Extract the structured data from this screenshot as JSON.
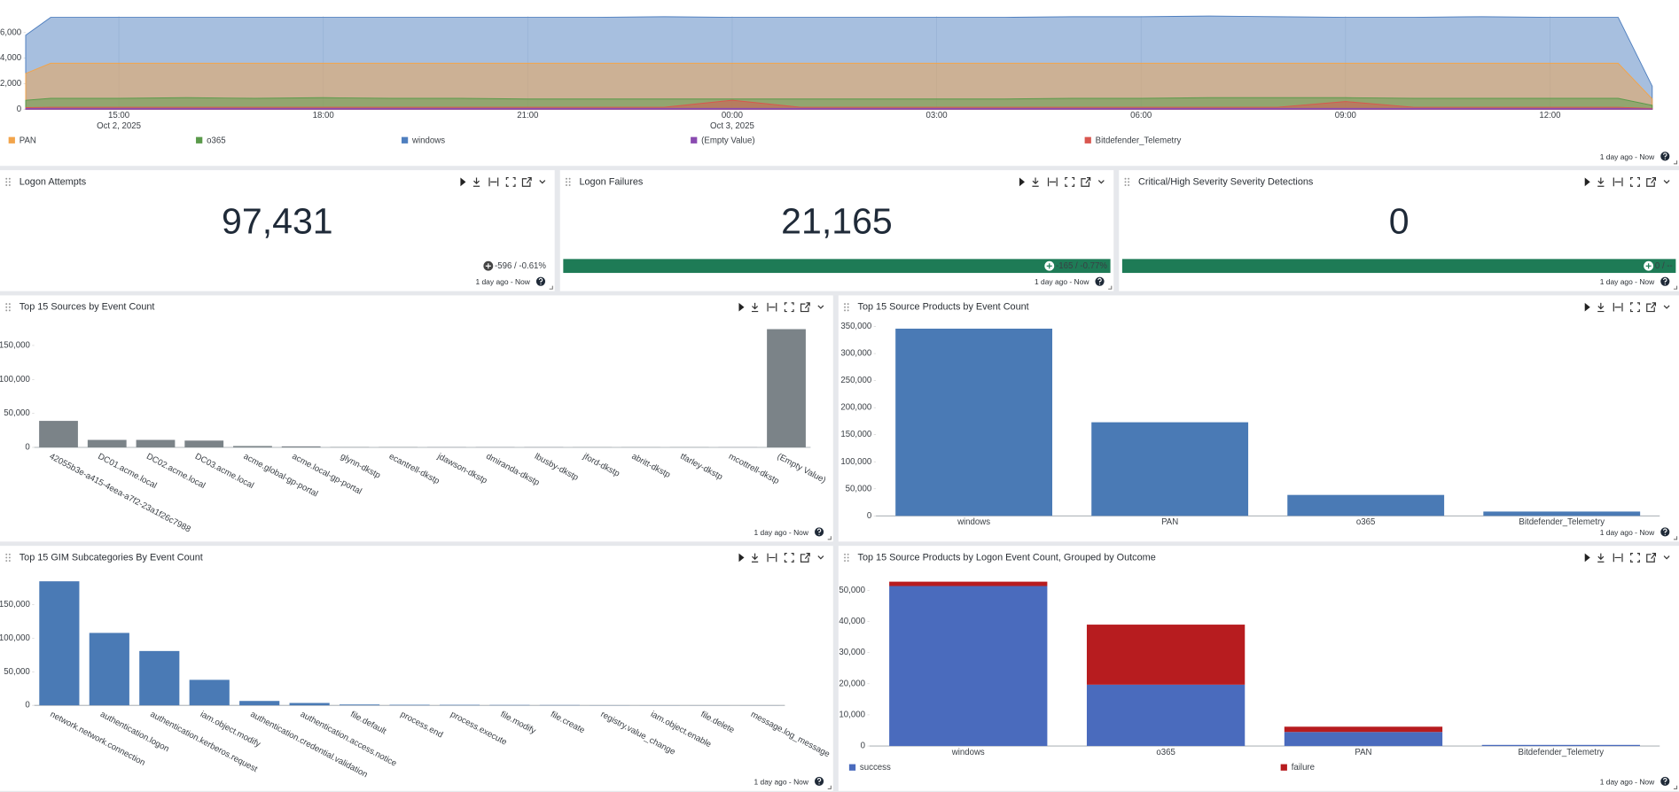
{
  "chart_data": [
    {
      "type": "area",
      "x": [
        "2025-10-02 13:38",
        "2025-10-02 14:00",
        "2025-10-02 15:00",
        "2025-10-02 16:00",
        "2025-10-02 17:00",
        "2025-10-02 18:00",
        "2025-10-02 19:00",
        "2025-10-02 20:00",
        "2025-10-02 21:00",
        "2025-10-02 22:00",
        "2025-10-02 23:00",
        "2025-10-03 00:00",
        "2025-10-03 01:00",
        "2025-10-03 02:00",
        "2025-10-03 03:00",
        "2025-10-03 04:00",
        "2025-10-03 05:00",
        "2025-10-03 06:00",
        "2025-10-03 07:00",
        "2025-10-03 08:00",
        "2025-10-03 09:00",
        "2025-10-03 10:00",
        "2025-10-03 11:00",
        "2025-10-03 12:00",
        "2025-10-03 13:00",
        "2025-10-03 13:30"
      ],
      "series": [
        {
          "name": "PAN",
          "color": "#f2a44b",
          "values": [
            2800,
            3600,
            3600,
            3600,
            3600,
            3600,
            3600,
            3600,
            3600,
            3600,
            3600,
            3600,
            3600,
            3600,
            3600,
            3600,
            3600,
            3600,
            3600,
            3600,
            3600,
            3600,
            3600,
            3600,
            3600,
            800
          ]
        },
        {
          "name": "o365",
          "color": "#5a9a4a",
          "values": [
            700,
            850,
            850,
            900,
            850,
            900,
            850,
            850,
            800,
            800,
            800,
            800,
            800,
            800,
            800,
            800,
            850,
            850,
            900,
            900,
            900,
            850,
            850,
            850,
            850,
            300
          ]
        },
        {
          "name": "windows",
          "color": "#4f7fbf",
          "values": [
            5800,
            7200,
            7200,
            7200,
            7200,
            7200,
            7200,
            7200,
            7200,
            7200,
            7250,
            7200,
            7200,
            7200,
            7200,
            7200,
            7250,
            7250,
            7300,
            7250,
            7200,
            7200,
            7250,
            7200,
            7200,
            1800
          ]
        },
        {
          "name": "(Empty Value)",
          "color": "#8a4bb0",
          "values": [
            50,
            60,
            60,
            60,
            60,
            60,
            60,
            60,
            60,
            60,
            60,
            60,
            60,
            60,
            60,
            60,
            60,
            60,
            60,
            60,
            60,
            60,
            60,
            60,
            60,
            20
          ]
        },
        {
          "name": "Bitdefender_Telemetry",
          "color": "#d9564f",
          "values": [
            120,
            150,
            150,
            150,
            150,
            150,
            150,
            150,
            150,
            150,
            150,
            700,
            150,
            150,
            150,
            150,
            150,
            150,
            150,
            150,
            600,
            150,
            150,
            150,
            150,
            50
          ]
        }
      ],
      "xlim": [
        "2025-10-02 13:38",
        "2025-10-03 13:30"
      ],
      "xticks": [
        {
          "value": "2025-10-02 15:00",
          "label": "15:00",
          "date": "Oct 2, 2025"
        },
        {
          "value": "2025-10-02 18:00",
          "label": "18:00"
        },
        {
          "value": "2025-10-02 21:00",
          "label": "21:00"
        },
        {
          "value": "2025-10-03 00:00",
          "label": "00:00",
          "date": "Oct 3, 2025"
        },
        {
          "value": "2025-10-03 03:00",
          "label": "03:00"
        },
        {
          "value": "2025-10-03 06:00",
          "label": "06:00"
        },
        {
          "value": "2025-10-03 09:00",
          "label": "09:00"
        },
        {
          "value": "2025-10-03 12:00",
          "label": "12:00"
        }
      ],
      "ylim": [
        0,
        7300
      ],
      "yticks": [
        0,
        {
          "value": 2000,
          "label": "2,000"
        },
        {
          "value": 4000,
          "label": "4,000"
        },
        {
          "value": 6000,
          "label": "6,000"
        }
      ],
      "grid": true
    },
    {
      "type": "bar",
      "title": "Top 15 Sources by Event Count",
      "color": "#7b8388",
      "categories": [
        "42055b3e-a415-4eea-a7f2-23a1f26c7988",
        "DC01.acme.local",
        "DC02.acme.local",
        "DC03.acme.local",
        "acme.global-gp-portal",
        "acme.local-gp-portal",
        "glynn-dkstp",
        "ecantrell-dkstp",
        "jdawson-dkstp",
        "dmiranda-dkstp",
        "lbusby-dkstp",
        "jford-dkstp",
        "abritt-dkstp",
        "tfarley-dkstp",
        "mcottrell-dkstp",
        "(Empty Value)"
      ],
      "values": [
        39000,
        11000,
        11000,
        10000,
        2000,
        1500,
        400,
        350,
        300,
        300,
        300,
        250,
        250,
        250,
        200,
        174000
      ],
      "ylim": [
        0,
        178000
      ],
      "yticks": [
        0,
        {
          "value": 50000,
          "label": "50,000"
        },
        {
          "value": 100000,
          "label": "100,000"
        },
        {
          "value": 150000,
          "label": "150,000"
        }
      ]
    },
    {
      "type": "bar",
      "title": "Top 15 Source Products by Event Count",
      "color": "#4a7ab5",
      "categories": [
        "windows",
        "PAN",
        "o365",
        "Bitdefender_Telemetry"
      ],
      "values": [
        346000,
        173000,
        38700,
        8000
      ],
      "ylim": [
        0,
        360000
      ],
      "yticks": [
        0,
        {
          "value": 50000,
          "label": "50,000"
        },
        {
          "value": 100000,
          "label": "100,000"
        },
        {
          "value": 150000,
          "label": "150,000"
        },
        {
          "value": 200000,
          "label": "200,000"
        },
        {
          "value": 250000,
          "label": "250,000"
        },
        {
          "value": 300000,
          "label": "300,000"
        },
        {
          "value": 350000,
          "label": "350,000"
        }
      ]
    },
    {
      "type": "bar",
      "title": "Top 15 GIM Subcategories By Event Count",
      "color": "#4a7ab5",
      "categories": [
        "network.network.connection",
        "authentication.logon",
        "authentication.kerberos.request",
        "iam.object.modify",
        "authentication.credential.validation",
        "authentication.access.notice",
        "file.default",
        "process.end",
        "process.execute",
        "file.modify",
        "file.create",
        "registry.value_change",
        "iam.object.enable",
        "file.delete",
        "message.log_message"
      ],
      "values": [
        185000,
        108000,
        81000,
        38000,
        6500,
        3500,
        1200,
        800,
        700,
        500,
        400,
        200,
        150,
        100,
        80
      ],
      "ylim": [
        0,
        190000
      ],
      "yticks": [
        0,
        {
          "value": 50000,
          "label": "50,000"
        },
        {
          "value": 100000,
          "label": "100,000"
        },
        {
          "value": 150000,
          "label": "150,000"
        }
      ]
    },
    {
      "type": "stacked_bar",
      "title": "Top 15 Source Products by Logon Event Count, Grouped by Outcome",
      "categories": [
        "windows",
        "o365",
        "PAN",
        "Bitdefender_Telemetry"
      ],
      "series": [
        {
          "name": "success",
          "color": "#4a6bbd",
          "values": [
            51400,
            19700,
            4500,
            350
          ]
        },
        {
          "name": "failure",
          "color": "#b71c1f",
          "values": [
            1400,
            19300,
            1700,
            0
          ]
        }
      ],
      "ylim": [
        0,
        54000
      ],
      "yticks": [
        0,
        {
          "value": 10000,
          "label": "10,000"
        },
        {
          "value": 20000,
          "label": "20,000"
        },
        {
          "value": 30000,
          "label": "30,000"
        },
        {
          "value": 40000,
          "label": "40,000"
        },
        {
          "value": 50000,
          "label": "50,000"
        }
      ]
    }
  ],
  "kpis": [
    {
      "title": "Logon Attempts",
      "value": "97,431",
      "delta": "-596 / -0.61%"
    },
    {
      "title": "Logon Failures",
      "value": "21,165",
      "delta": "-165 / -0.77%",
      "delta_color": "#1e7b56"
    },
    {
      "title": "Critical/High Severity Severity Detections",
      "value": "0",
      "delta": "0 / --",
      "delta_color": "#1e7b56"
    }
  ],
  "time_range": "1 day ago - Now"
}
